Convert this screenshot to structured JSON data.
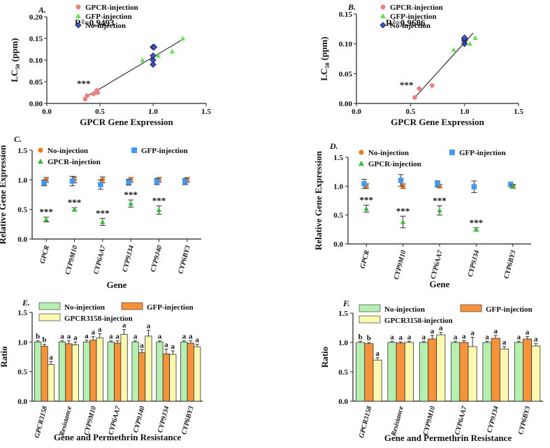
{
  "colors": {
    "gpcr_point": "#f08080",
    "gfp_point": "#66dd55",
    "noinj_point": "#3355cc",
    "noinj_dot": "#f07820",
    "gfp_sq": "#4499ee",
    "gpcr_tri": "#33bb33",
    "bar_noinj": "#b6f0b0",
    "bar_gfp": "#f5923a",
    "bar_gpcr": "#fbf8b0"
  },
  "chart_data": [
    {
      "id": "A",
      "type": "scatter",
      "panel_label": "A.",
      "r2_label": "R²=0.9493",
      "significance": "***",
      "xlabel": "GPCR Gene Expression",
      "ylabel": "LC50 (ppm)",
      "ylabel_main": "LC",
      "ylabel_sub": "50",
      "ylabel_rest": " (ppm)",
      "xlim": [
        0,
        1.5
      ],
      "ylim": [
        0,
        0.2
      ],
      "xticks": [
        "0.0",
        "0.5",
        "1.0",
        "1.5"
      ],
      "yticks": [
        "0.00",
        "0.05",
        "0.10",
        "0.15",
        "0.20"
      ],
      "legend": [
        "GPCR-injection",
        "GFP-injection",
        "No-injection"
      ],
      "series": [
        {
          "name": "GPCR-injection",
          "points": [
            [
              0.36,
              0.01
            ],
            [
              0.38,
              0.018
            ],
            [
              0.44,
              0.022
            ],
            [
              0.47,
              0.03
            ],
            [
              0.48,
              0.025
            ]
          ]
        },
        {
          "name": "GFP-injection",
          "points": [
            [
              0.9,
              0.1
            ],
            [
              1.05,
              0.11
            ],
            [
              1.18,
              0.12
            ],
            [
              1.28,
              0.15
            ]
          ]
        },
        {
          "name": "No-injection",
          "points": [
            [
              1.0,
              0.09
            ],
            [
              1.0,
              0.1
            ],
            [
              1.0,
              0.11
            ],
            [
              1.0,
              0.13
            ],
            [
              1.01,
              0.13
            ]
          ]
        }
      ],
      "fit_line": [
        [
          0.37,
          0.015
        ],
        [
          1.28,
          0.148
        ]
      ]
    },
    {
      "id": "B",
      "type": "scatter",
      "panel_label": "B.",
      "r2_label": "R²=0.9686",
      "significance": "***",
      "xlabel": "GPCR Gene Expression",
      "ylabel": "LC50 (ppm)",
      "ylabel_main": "LC",
      "ylabel_sub": "50",
      "ylabel_rest": " (ppm)",
      "xlim": [
        0,
        1.5
      ],
      "ylim": [
        0,
        0.15
      ],
      "xticks": [
        "0.0",
        "0.5",
        "1.0",
        "1.5"
      ],
      "yticks": [
        "0.00",
        "0.05",
        "0.10",
        "0.15"
      ],
      "legend": [
        "GPCR-injection",
        "GFP-injection",
        "No-injection"
      ],
      "series": [
        {
          "name": "GPCR-injection",
          "points": [
            [
              0.54,
              0.01
            ],
            [
              0.58,
              0.025
            ],
            [
              0.7,
              0.03
            ]
          ]
        },
        {
          "name": "GFP-injection",
          "points": [
            [
              0.9,
              0.09
            ],
            [
              1.05,
              0.1
            ],
            [
              1.1,
              0.11
            ]
          ]
        },
        {
          "name": "No-injection",
          "points": [
            [
              1.0,
              0.1
            ],
            [
              1.0,
              0.105
            ],
            [
              1.0,
              0.108
            ],
            [
              1.0,
              0.11
            ]
          ]
        }
      ],
      "fit_line": [
        [
          0.54,
          0.01
        ],
        [
          1.08,
          0.118
        ]
      ]
    },
    {
      "id": "C",
      "type": "scatter",
      "panel_label": "C.",
      "xlabel": "Gene",
      "ylabel": "Relative Gene Expression",
      "ylim": [
        0,
        1.5
      ],
      "yticks": [
        "0.0",
        "0.5",
        "1.0",
        "1.5"
      ],
      "categories": [
        "GPCR",
        "CYP9M10",
        "CYP6AA7",
        "CYP9J34",
        "CYP9J40",
        "CYP6BY3"
      ],
      "legend": [
        "No-injection",
        "GFP-injection",
        "GPCR-injection"
      ],
      "series": [
        {
          "name": "No-injection",
          "values": [
            1.0,
            1.0,
            1.0,
            1.0,
            1.0,
            1.0
          ],
          "err": [
            0.04,
            0.05,
            0.05,
            0.04,
            0.04,
            0.04
          ]
        },
        {
          "name": "GFP-injection",
          "values": [
            0.95,
            0.98,
            0.92,
            0.96,
            0.97,
            0.97
          ],
          "err": [
            0.05,
            0.08,
            0.08,
            0.05,
            0.05,
            0.05
          ]
        },
        {
          "name": "GPCR-injection",
          "values": [
            0.33,
            0.5,
            0.29,
            0.6,
            0.49,
            null
          ],
          "err": [
            0.04,
            0.03,
            0.06,
            0.06,
            0.07,
            0
          ]
        }
      ],
      "significance": [
        "***",
        "***",
        "***",
        "***",
        "***",
        ""
      ]
    },
    {
      "id": "D",
      "type": "scatter",
      "panel_label": "D.",
      "xlabel": "Gene",
      "ylabel": "Relative Gene Expression",
      "ylim": [
        0,
        1.5
      ],
      "yticks": [
        "0.0",
        "0.5",
        "1.0",
        "1.5"
      ],
      "categories": [
        "GPCR",
        "CYP9M10",
        "CYP6AA7",
        "CYP9J34",
        "CYP6BY3"
      ],
      "legend": [
        "No-injection",
        "GFP-injection",
        "GPCR-injection"
      ],
      "series": [
        {
          "name": "No-injection",
          "values": [
            1.0,
            1.0,
            1.0,
            null,
            1.0
          ],
          "err": [
            0.04,
            0.04,
            0.03,
            0,
            0.03
          ]
        },
        {
          "name": "GFP-injection",
          "values": [
            1.04,
            1.1,
            1.04,
            0.99,
            1.03
          ],
          "err": [
            0.08,
            0.1,
            0.05,
            0.1,
            0.04
          ]
        },
        {
          "name": "GPCR-injection",
          "values": [
            0.61,
            0.38,
            0.58,
            0.25,
            0.99
          ],
          "err": [
            0.06,
            0.1,
            0.08,
            0.03,
            0.03
          ]
        }
      ],
      "significance": [
        "***",
        "***",
        "***",
        "***",
        ""
      ]
    },
    {
      "id": "E",
      "type": "bar",
      "panel_label": "E.",
      "xlabel": "Gene and Permethrin Resistance",
      "ylabel": "Ratio",
      "ylim": [
        0,
        1.5
      ],
      "yticks": [
        "0.0",
        "0.5",
        "1.0",
        "1.5"
      ],
      "categories": [
        "GPCR3158",
        "Resistance",
        "CYP9M10",
        "CYP6AA7",
        "CYP9J40",
        "CYP9J34",
        "CYP6BY3"
      ],
      "legend": [
        "No-injection",
        "GFP-injection",
        "GPCR3158-injection"
      ],
      "series": [
        {
          "name": "No-injection",
          "values": [
            1.0,
            1.0,
            1.0,
            1.0,
            1.0,
            1.0,
            1.0
          ],
          "err": [
            0.02,
            0.02,
            0.03,
            0.02,
            0.02,
            0.02,
            0.02
          ],
          "letters": [
            "b",
            "a",
            "a",
            "a",
            "a",
            "a",
            "a"
          ]
        },
        {
          "name": "GFP-injection",
          "values": [
            0.93,
            0.97,
            1.03,
            0.98,
            0.82,
            0.8,
            0.98
          ],
          "err": [
            0.03,
            0.05,
            0.06,
            0.04,
            0.05,
            0.08,
            0.04
          ],
          "letters": [
            "b",
            "a",
            "a",
            "a",
            "a",
            "a",
            "a"
          ]
        },
        {
          "name": "GPCR3158-injection",
          "values": [
            0.62,
            0.95,
            1.07,
            1.13,
            1.1,
            0.79,
            0.92
          ],
          "err": [
            0.05,
            0.05,
            0.07,
            0.08,
            0.1,
            0.06,
            0.04
          ],
          "letters": [
            "a",
            "a",
            "a",
            "a",
            "a",
            "a",
            "a"
          ]
        }
      ]
    },
    {
      "id": "F",
      "type": "bar",
      "panel_label": "F.",
      "xlabel": "Gene and Permethrin Resistance",
      "ylabel": "Ratio",
      "ylim": [
        0,
        1.5
      ],
      "yticks": [
        "0.0",
        "0.5",
        "1.0",
        "1.5"
      ],
      "categories": [
        "GPCR3158",
        "Resistance",
        "CYP9M10",
        "CYP6AA7",
        "CYP9J34",
        "CYP6BY3"
      ],
      "legend": [
        "No-injection",
        "GFP-injection",
        "GPCR3158-injection"
      ],
      "series": [
        {
          "name": "No-injection",
          "values": [
            1.0,
            1.0,
            1.0,
            1.0,
            1.0,
            1.0
          ],
          "err": [
            0.02,
            0.02,
            0.02,
            0.02,
            0.02,
            0.02
          ],
          "letters": [
            "b",
            "a",
            "a",
            "a",
            "a",
            "a"
          ]
        },
        {
          "name": "GFP-injection",
          "values": [
            0.98,
            0.99,
            1.06,
            1.0,
            1.07,
            1.06
          ],
          "err": [
            0.02,
            0.02,
            0.06,
            0.03,
            0.05,
            0.04
          ],
          "letters": [
            "b",
            "a",
            "a",
            "a",
            "a",
            "a"
          ]
        },
        {
          "name": "GPCR3158-injection",
          "values": [
            0.7,
            1.0,
            1.13,
            0.93,
            0.89,
            0.94
          ],
          "err": [
            0.04,
            0.02,
            0.04,
            0.16,
            0.04,
            0.04
          ],
          "letters": [
            "a",
            "a",
            "a",
            "a",
            "a",
            "a"
          ]
        }
      ]
    }
  ]
}
